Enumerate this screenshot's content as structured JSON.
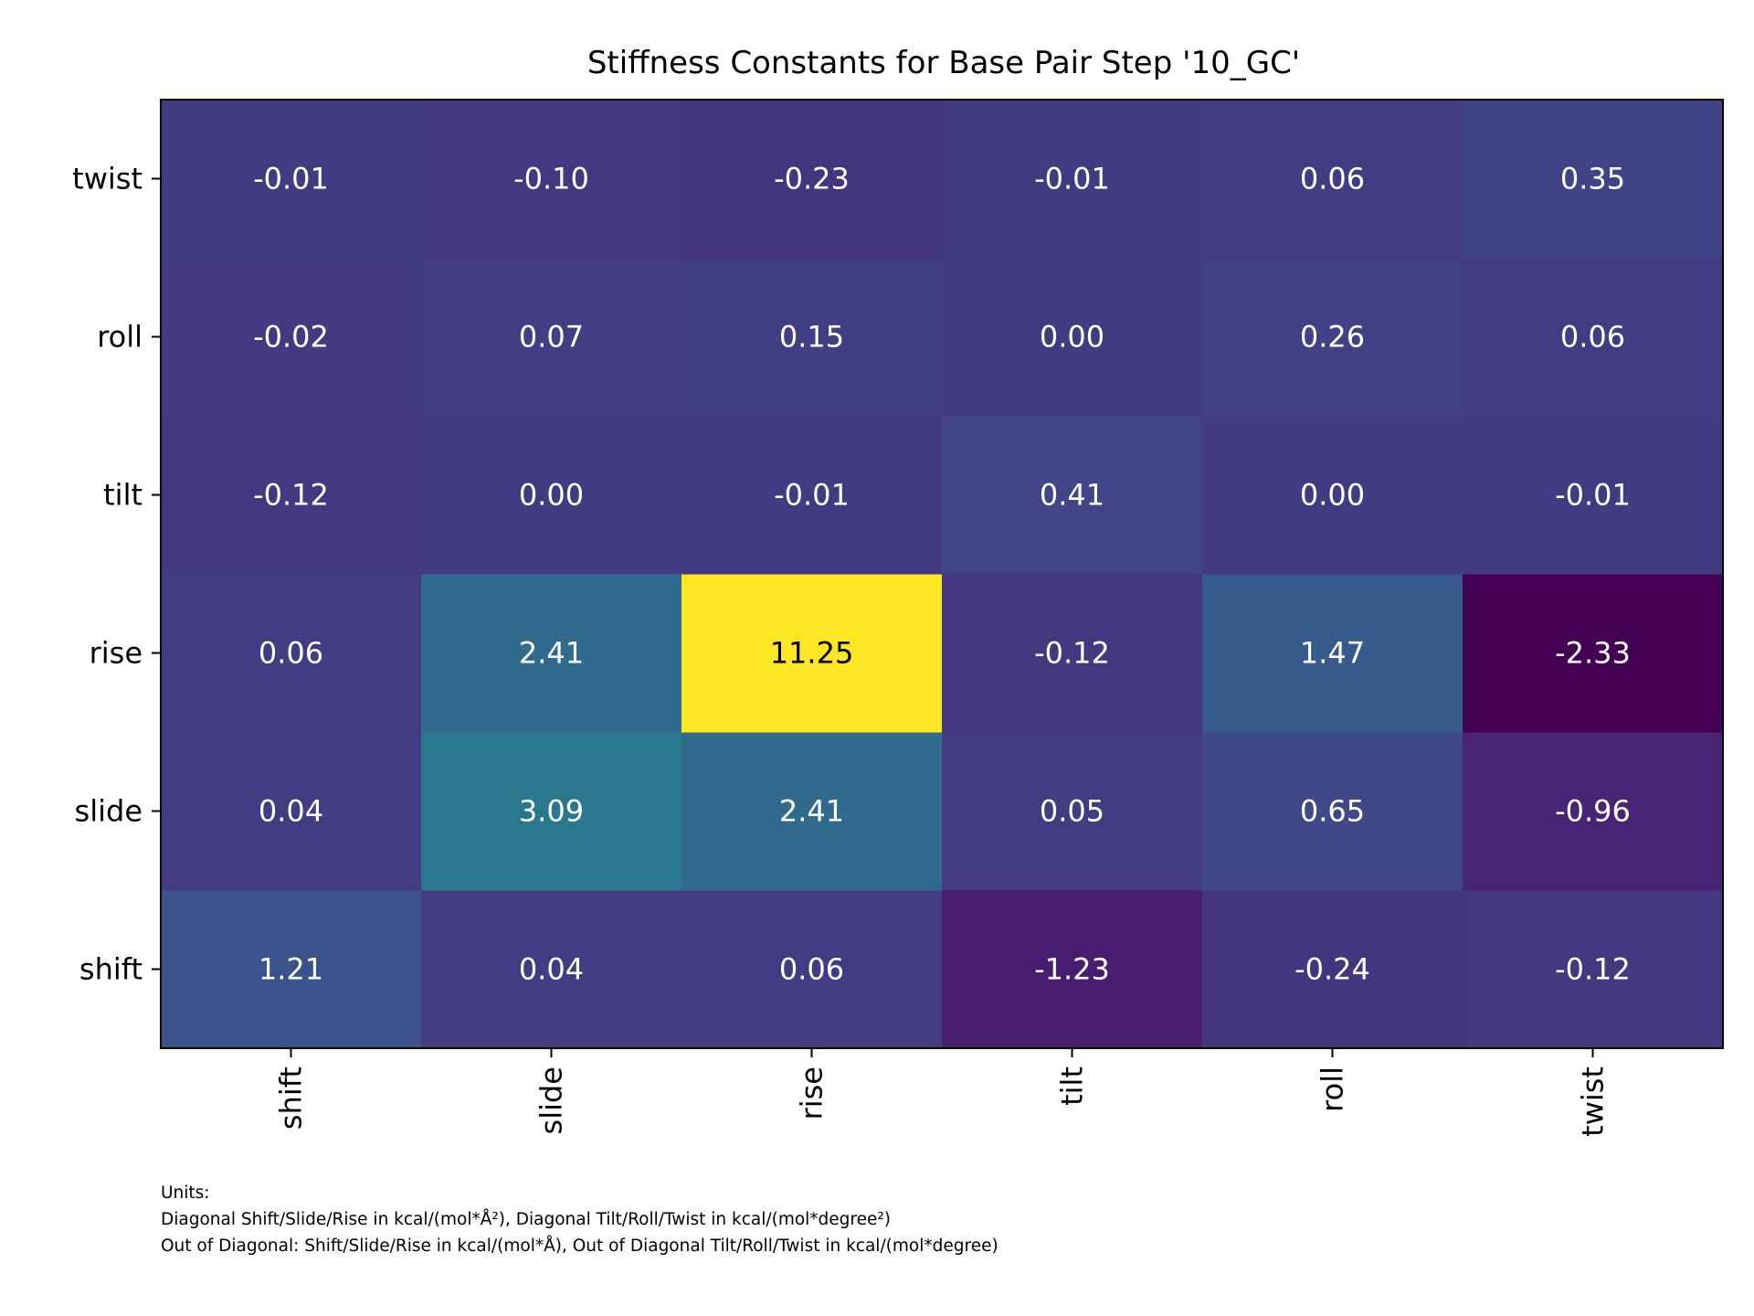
{
  "chart_data": {
    "type": "heatmap",
    "title": "Stiffness Constants for Base Pair Step '10_GC'",
    "x_categories": [
      "shift",
      "slide",
      "rise",
      "tilt",
      "roll",
      "twist"
    ],
    "y_categories": [
      "shift",
      "slide",
      "rise",
      "tilt",
      "roll",
      "twist"
    ],
    "colormap": "viridis",
    "color_range": [
      -2.33,
      11.25
    ],
    "values": [
      [
        1.21,
        0.04,
        0.06,
        -1.23,
        -0.24,
        -0.12
      ],
      [
        0.04,
        3.09,
        2.41,
        0.05,
        0.65,
        -0.96
      ],
      [
        0.06,
        2.41,
        11.25,
        -0.12,
        1.47,
        -2.33
      ],
      [
        -0.12,
        0.0,
        -0.01,
        0.41,
        0.0,
        -0.01
      ],
      [
        -0.02,
        0.07,
        0.15,
        0.0,
        0.26,
        0.06
      ],
      [
        -0.01,
        -0.1,
        -0.23,
        -0.01,
        0.06,
        0.35
      ]
    ],
    "label_colors": {
      "light_cell": "#000000",
      "dark_cell": "#ffffff"
    }
  },
  "footnote": {
    "heading": "Units:",
    "line1": "Diagonal Shift/Slide/Rise in kcal/(mol*Å²), Diagonal Tilt/Roll/Twist in kcal/(mol*degree²)",
    "line2": "Out of Diagonal: Shift/Slide/Rise in kcal/(mol*Å), Out of Diagonal Tilt/Roll/Twist in kcal/(mol*degree)"
  }
}
